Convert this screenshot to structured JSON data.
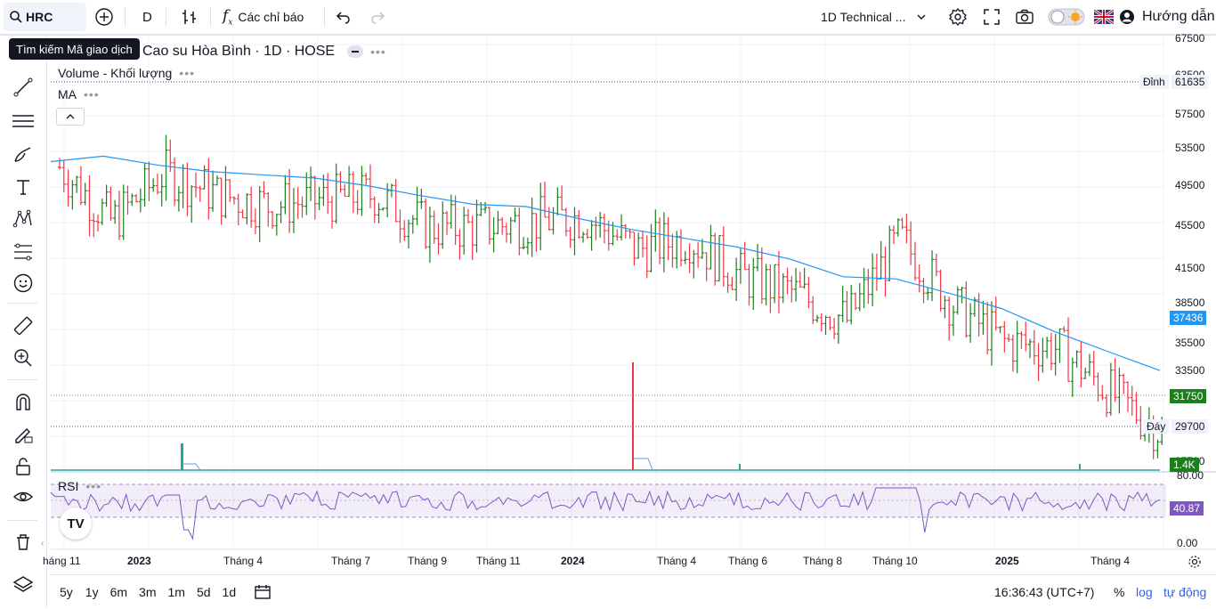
{
  "toolbar": {
    "symbol": "HRC",
    "interval": "D",
    "indicators_label": "Các chỉ báo",
    "layout_name": "1D Technical ...",
    "help_label": "Hướng dẫn"
  },
  "tooltip": "Tìm kiếm Mã giao dịch",
  "legend": {
    "title": "Cao su Hòa Bình · 1D · HOSE",
    "volume_label": "Volume - Khối lượng",
    "ma_label": "MA",
    "rsi_label": "RSI",
    "dots": "•••"
  },
  "price_axis": {
    "ticks": [
      "67500",
      "63500",
      "57500",
      "53500",
      "49500",
      "45500",
      "41500",
      "38500",
      "35500",
      "33500",
      "29700"
    ],
    "top_tag_label": "Đỉnh",
    "top_tag_value": "61635",
    "ma_value": "37436",
    "last_value": "31750",
    "low_tag_label": "Đáy",
    "low_tag_value": "29700",
    "volume_value": "1.4K",
    "rsi_value": "40.87",
    "rsi_top": "80.00",
    "rsi_bottom": "0.00",
    "partial_label": "27700"
  },
  "time_axis": {
    "labels": [
      "háng 11",
      "2023",
      "Tháng 4",
      "Tháng 7",
      "Tháng 9",
      "Tháng 11",
      "2024",
      "Tháng 4",
      "Tháng 6",
      "Tháng 8",
      "Tháng 10",
      "2025",
      "Tháng 4"
    ]
  },
  "bottom": {
    "ranges": [
      "5y",
      "1y",
      "6m",
      "3m",
      "1m",
      "5d",
      "1d"
    ],
    "clock": "16:36:43 (UTC+7)",
    "percent": "%",
    "log": "log",
    "auto": "tự động"
  },
  "colors": {
    "up": "#089981",
    "up_bar": "#1b7f1b",
    "down": "#f23645",
    "ma": "#2196f3",
    "rsi": "#7e57c2",
    "rsi_band": "#7e57c2",
    "volume_bar": "#26a69a"
  },
  "chart_data": [
    {
      "type": "line",
      "title": "Cao su Hòa Bình · 1D · HOSE",
      "xlabel": "",
      "ylabel": "",
      "ylim": [
        29000,
        68000
      ],
      "x_labels": [
        "háng 11",
        "2023",
        "Tháng 4",
        "Tháng 7",
        "Tháng 9",
        "Tháng 11",
        "2024",
        "Tháng 4",
        "Tháng 6",
        "Tháng 8",
        "Tháng 10",
        "2025",
        "Tháng 4"
      ],
      "series": [
        {
          "name": "MA",
          "values": [
            56500,
            57000,
            56200,
            55600,
            55300,
            55000,
            54300,
            53400,
            52600,
            52400,
            51300,
            50300,
            49500,
            48700,
            47600,
            46000,
            45800,
            44500,
            43100,
            41000,
            39200,
            37436
          ]
        },
        {
          "name": "Close",
          "values": [
            56000,
            51000,
            55500,
            53500,
            52500,
            53000,
            53500,
            50500,
            50500,
            51000,
            51500,
            48500,
            49500,
            46000,
            44500,
            42000,
            49500,
            43500,
            40000,
            39500,
            35500,
            31750
          ]
        }
      ],
      "annotations": {
        "high": 61635,
        "low": 29700,
        "last": 31750,
        "ma_last": 37436
      }
    },
    {
      "type": "bar",
      "title": "Volume - Khối lượng",
      "last_value": "1.4K",
      "notes": "spikes near early 2023 and mid-2024"
    },
    {
      "type": "line",
      "title": "RSI",
      "ylim": [
        0,
        80
      ],
      "last_value": 40.87
    }
  ]
}
